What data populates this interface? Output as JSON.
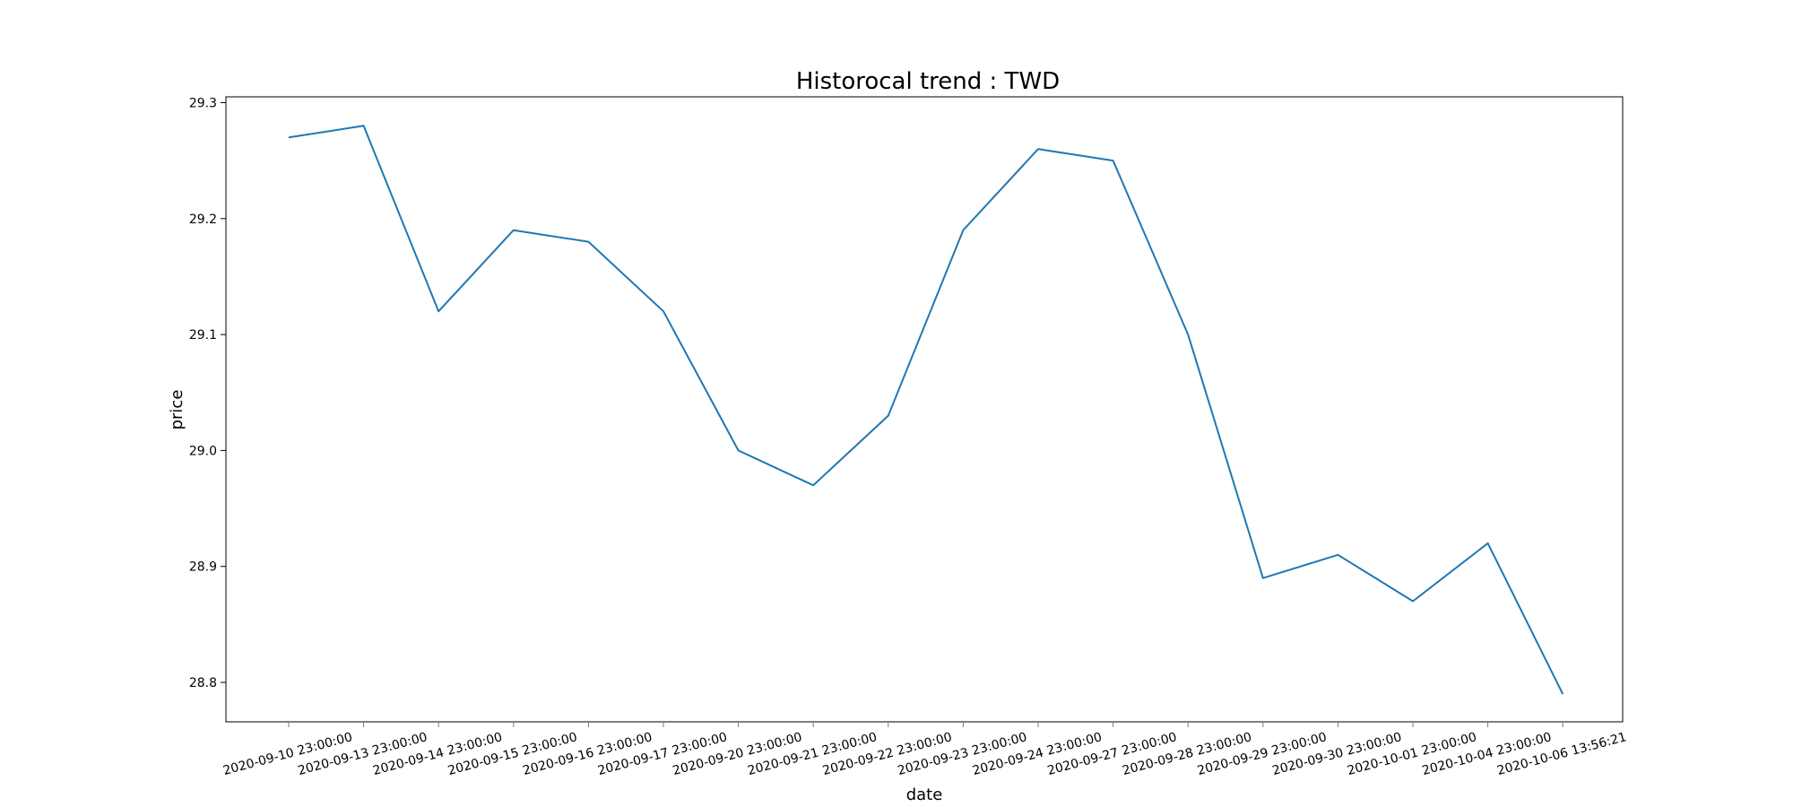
{
  "chart_data": {
    "type": "line",
    "title": "Historocal trend : TWD",
    "xlabel": "date",
    "ylabel": "price",
    "x": [
      "2020-09-10 23:00:00",
      "2020-09-13 23:00:00",
      "2020-09-14 23:00:00",
      "2020-09-15 23:00:00",
      "2020-09-16 23:00:00",
      "2020-09-17 23:00:00",
      "2020-09-20 23:00:00",
      "2020-09-21 23:00:00",
      "2020-09-22 23:00:00",
      "2020-09-23 23:00:00",
      "2020-09-24 23:00:00",
      "2020-09-27 23:00:00",
      "2020-09-28 23:00:00",
      "2020-09-29 23:00:00",
      "2020-09-30 23:00:00",
      "2020-10-01 23:00:00",
      "2020-10-04 23:00:00",
      "2020-10-06 13:56:21"
    ],
    "series": [
      {
        "values": [
          29.27,
          29.28,
          29.12,
          29.19,
          29.18,
          29.12,
          29.0,
          28.97,
          29.03,
          29.19,
          29.26,
          29.25,
          29.1,
          28.89,
          28.91,
          28.87,
          28.92,
          28.79
        ],
        "color": "#1f77b4"
      }
    ],
    "yticks": [
      "28.8",
      "28.9",
      "29.0",
      "29.1",
      "29.2",
      "29.3"
    ],
    "ylim": [
      28.766,
      29.305
    ],
    "grid": false,
    "legend": "none"
  }
}
